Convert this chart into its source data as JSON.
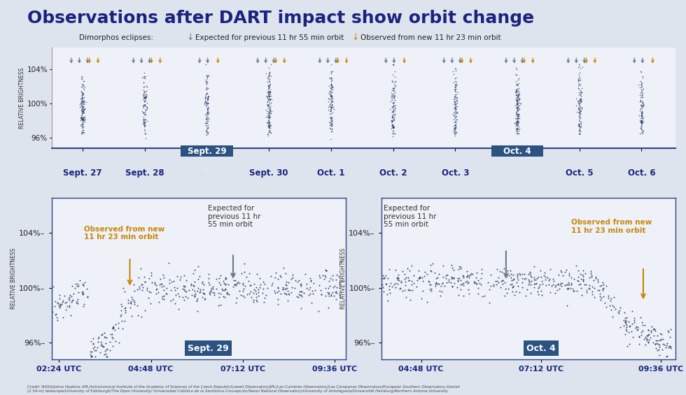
{
  "title": "Observations after DART impact show orbit change",
  "title_fontsize": 18,
  "title_color": "#1a237e",
  "background_color": "#dde4ee",
  "panel_bg": "#eef1f7",
  "dark_blue": "#1a2e5a",
  "gold": "#c8860a",
  "gray_arrow": "#6a7a8a",
  "highlight_blue": "#2c5282",
  "legend_text": "Dimorphos eclipses:",
  "legend_gray_label": "Expected for previous 11 hr 55 min orbit",
  "legend_gold_label": "Observed from new 11 hr 23 min orbit",
  "top_dates": [
    "Sept. 27",
    "Sept. 28",
    "Sept. 29",
    "Sept. 30",
    "Oct. 1",
    "Oct. 2",
    "Oct. 3",
    "Oct. 4",
    "Oct. 5",
    "Oct. 6"
  ],
  "sept29_xlabel": [
    "02:24 UTC",
    "04:48 UTC",
    "07:12 UTC",
    "09:36 UTC"
  ],
  "oct4_xlabel": [
    "04:48 UTC",
    "07:12 UTC",
    "09:36 UTC"
  ],
  "sept29_label": "Sept. 29",
  "oct4_label": "Oct. 4",
  "ylabel": "RELATIVE BRIGHTNESS",
  "sept29_annot_new": "Observed from new\n11 hr 23 min orbit",
  "sept29_annot_exp": "Expected for\nprevious 11 hr\n55 min orbit",
  "oct4_annot_exp": "Expected for\nprevious 11 hr\n55 min orbit",
  "oct4_annot_new": "Observed from new\n11 hr 23 min orbit",
  "credit": "Credit: NASA/Johns Hopkins APL/Astronomical Institute of the Academy of Sciences of the Czech Republic/Lowell Observatory/JPL/Las Cumbres Observatory/Las Campanas Observatory/European Southern Observatory Danish\n(1.54-m) telescope/University of Edinburgh/The Open University/ Universidad Católica de la Santísima Concepción/Seoul National Observatory/University of Antofagasta/Universität Hamburg/Northern Arizona University"
}
